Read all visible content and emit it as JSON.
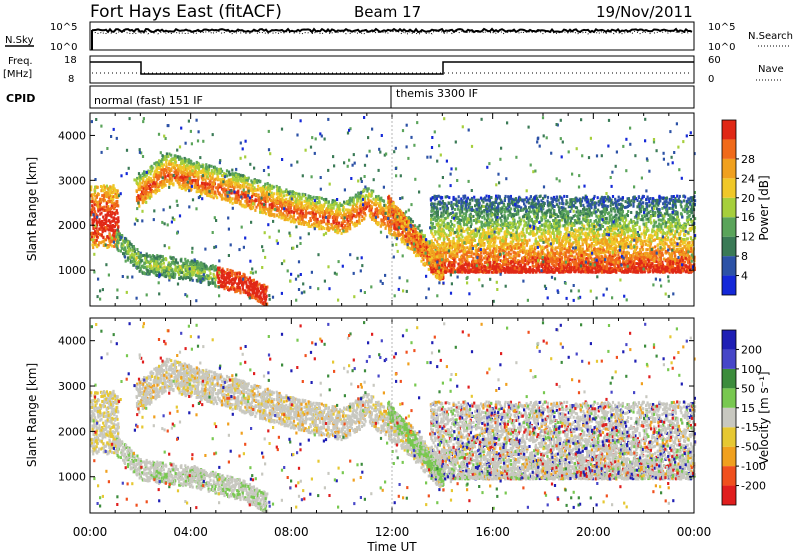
{
  "header": {
    "title": "Fort Hays East (fitACF)",
    "beam": "Beam 17",
    "date": "19/Nov/2011"
  },
  "noise_panel": {
    "label": "N.Sky",
    "right_label": "N.Search",
    "left_ticks": [
      "10^5",
      "10^0"
    ],
    "right_ticks": [
      "10^5",
      "10^0"
    ]
  },
  "freq_panel": {
    "label_line1": "Freq.",
    "label_line2": "[MHz]",
    "right_label": "Nave",
    "left_ticks": [
      "18",
      "8"
    ],
    "right_ticks": [
      "60",
      "0"
    ]
  },
  "cpid": {
    "label": "CPID",
    "modes": [
      {
        "name": "normal (fast) 151 IF",
        "start_hour": 0
      },
      {
        "name": "themis 3300 IF",
        "start_hour": 12
      }
    ]
  },
  "time_axis": {
    "label": "Time UT",
    "ticks": [
      "00:00",
      "04:00",
      "08:00",
      "12:00",
      "16:00",
      "20:00",
      "00:00"
    ]
  },
  "colors": {
    "power": [
      "#1428d8",
      "#2c52a6",
      "#3a7a56",
      "#5aa45a",
      "#a6cf3c",
      "#f0c828",
      "#f0a01e",
      "#f06a1a",
      "#e02816"
    ],
    "velocity": [
      "#1e1eb4",
      "#4646c8",
      "#3c8c3c",
      "#78c850",
      "#c8c8c0",
      "#e6c832",
      "#f0a01e",
      "#f0501e",
      "#e01e1e"
    ]
  },
  "chart_data": [
    {
      "type": "heatmap",
      "panel": "power",
      "ylabel": "Slant Range [km]",
      "xlabel": "",
      "yticks": [
        1000,
        2000,
        3000,
        4000
      ],
      "ylim": [
        200,
        4500
      ],
      "xlim_hours": [
        0,
        24
      ],
      "colorbar_label": "Power [dB]",
      "colorbar_ticks": [
        "4",
        "8",
        "12",
        "16",
        "20",
        "24",
        "28"
      ],
      "features": [
        {
          "name": "upper band",
          "hours": [
            1.8,
            3.0,
            5.5,
            8.0,
            10.0,
            11.0,
            12.5,
            14.0
          ],
          "range_km": [
            2600,
            3150,
            2750,
            2300,
            2050,
            2400,
            1800,
            900
          ]
        },
        {
          "name": "near band",
          "hours": [
            1.0,
            2.0,
            4.0,
            6.0,
            7.0
          ],
          "range_km": [
            1700,
            1150,
            1000,
            700,
            400
          ]
        },
        {
          "name": "late broad region",
          "hours": [
            14.0,
            24.0
          ],
          "range_km": [
            1000,
            2500
          ]
        }
      ]
    },
    {
      "type": "heatmap",
      "panel": "velocity",
      "ylabel": "Slant Range [km]",
      "xlabel": "Time UT",
      "yticks": [
        1000,
        2000,
        3000,
        4000
      ],
      "ylim": [
        200,
        4500
      ],
      "xlim_hours": [
        0,
        24
      ],
      "colorbar_label": "Velocity [m s⁻¹]",
      "colorbar_ticks": [
        "200",
        "100",
        "50",
        "15",
        "-15",
        "-50",
        "-100",
        "-200"
      ]
    }
  ]
}
